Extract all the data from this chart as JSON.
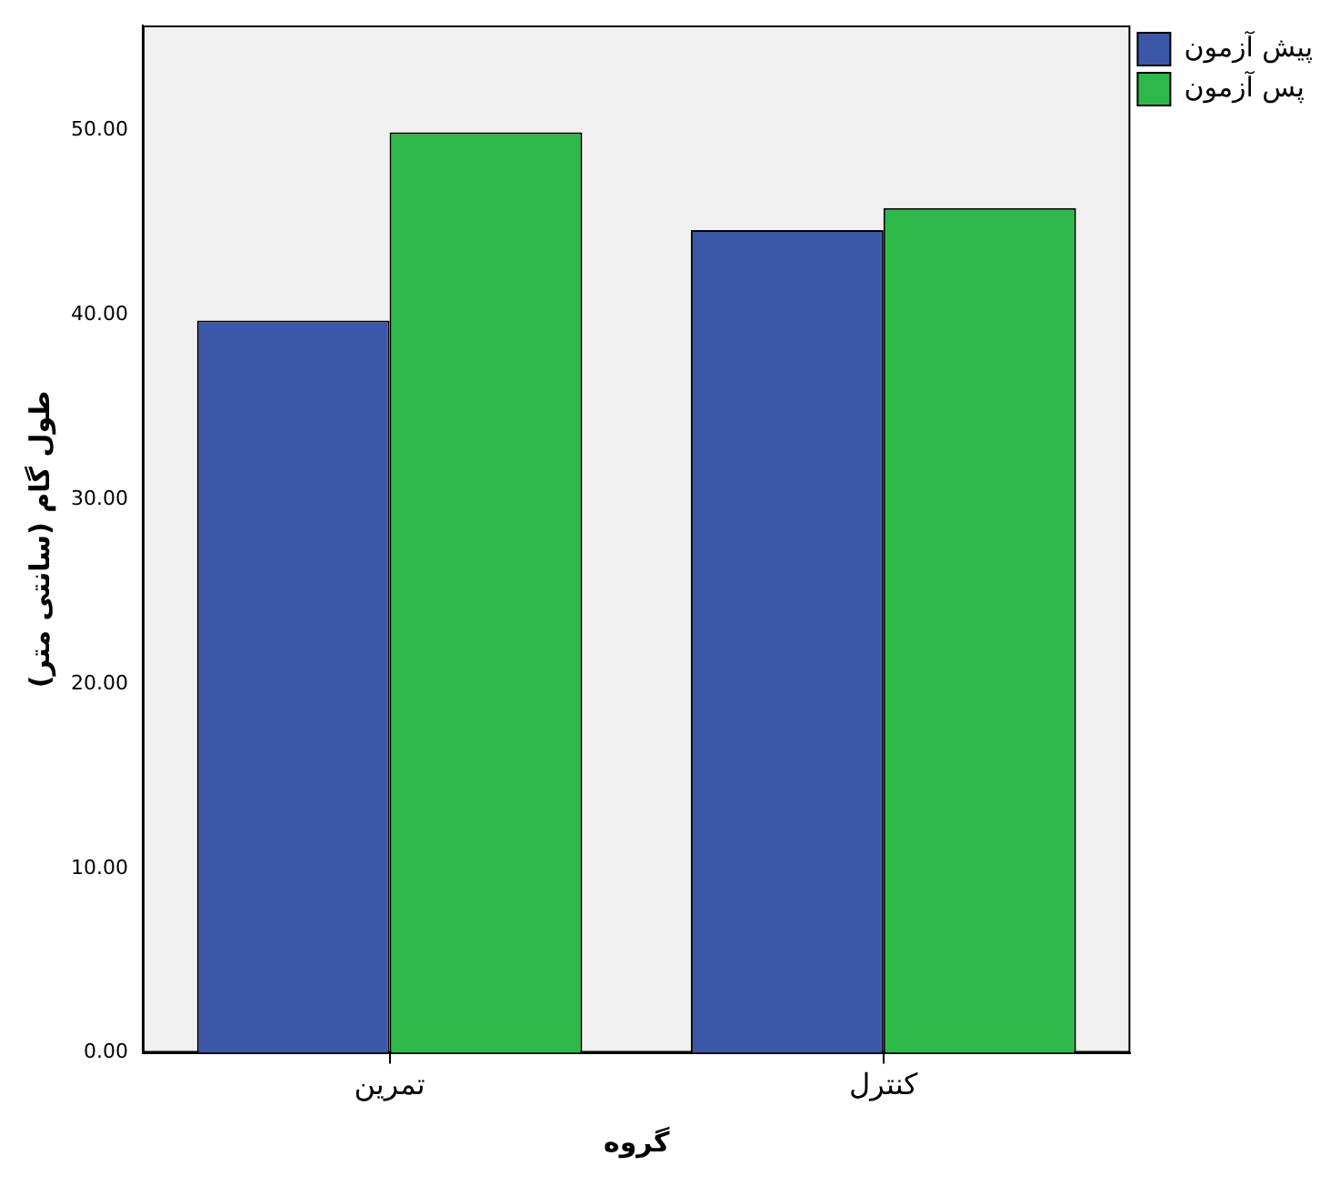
{
  "chart_data": {
    "type": "bar",
    "xlabel": "گروه",
    "ylabel": "طول گام (سانتی متر)",
    "categories": [
      "تمرین",
      "کنترل"
    ],
    "series": [
      {
        "name": "پیش آزمون",
        "color": "#3c56a8",
        "values": [
          39.7,
          44.6
        ]
      },
      {
        "name": "پس آزمون",
        "color": "#2db84a",
        "values": [
          49.9,
          45.8
        ]
      }
    ],
    "ylim": [
      0,
      55.7
    ],
    "yticks": [
      {
        "value": 0,
        "label": "0.00"
      },
      {
        "value": 10,
        "label": "10.00"
      },
      {
        "value": 20,
        "label": "20.00"
      },
      {
        "value": 30,
        "label": "30.00"
      },
      {
        "value": 40,
        "label": "40.00"
      },
      {
        "value": 50,
        "label": "50.00"
      }
    ],
    "grid": false,
    "legend": "top right"
  }
}
